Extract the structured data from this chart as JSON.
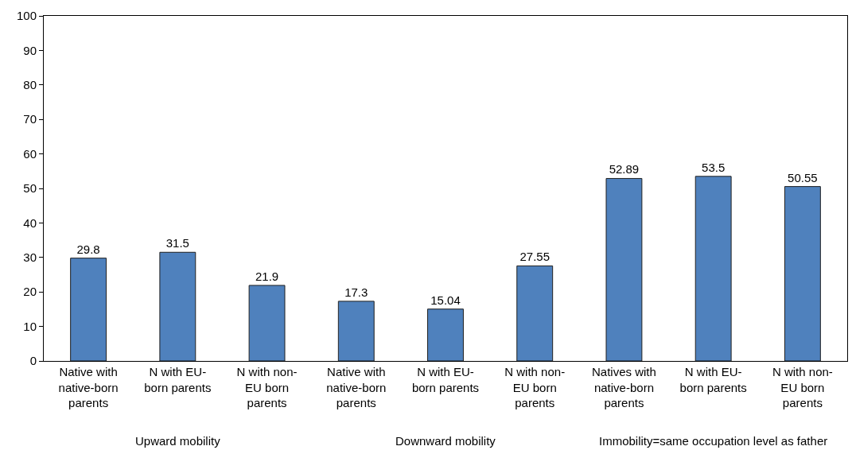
{
  "chart_data": {
    "type": "bar",
    "categories": [
      "Native with\nnative-born\nparents",
      "N with EU-\nborn parents",
      "N with non-\nEU born\nparents",
      "Native with\nnative-born\nparents",
      "N with EU-\nborn parents",
      "N with non-\nEU born\nparents",
      "Natives with\nnative-born\nparents",
      "N with EU-\nborn parents",
      "N with non-\nEU born\nparents"
    ],
    "values": [
      29.8,
      31.5,
      21.9,
      17.3,
      15.04,
      27.55,
      52.89,
      53.5,
      50.55
    ],
    "color": "#4f81bd",
    "annotations": [
      "Upward mobility",
      "Downward mobility",
      "Immobility=same occupation level as father"
    ],
    "ylim": [
      0,
      100
    ],
    "yticks": [
      0,
      10,
      20,
      30,
      40,
      50,
      60,
      70,
      80,
      90,
      100
    ],
    "data_labels": true,
    "legend": false
  }
}
